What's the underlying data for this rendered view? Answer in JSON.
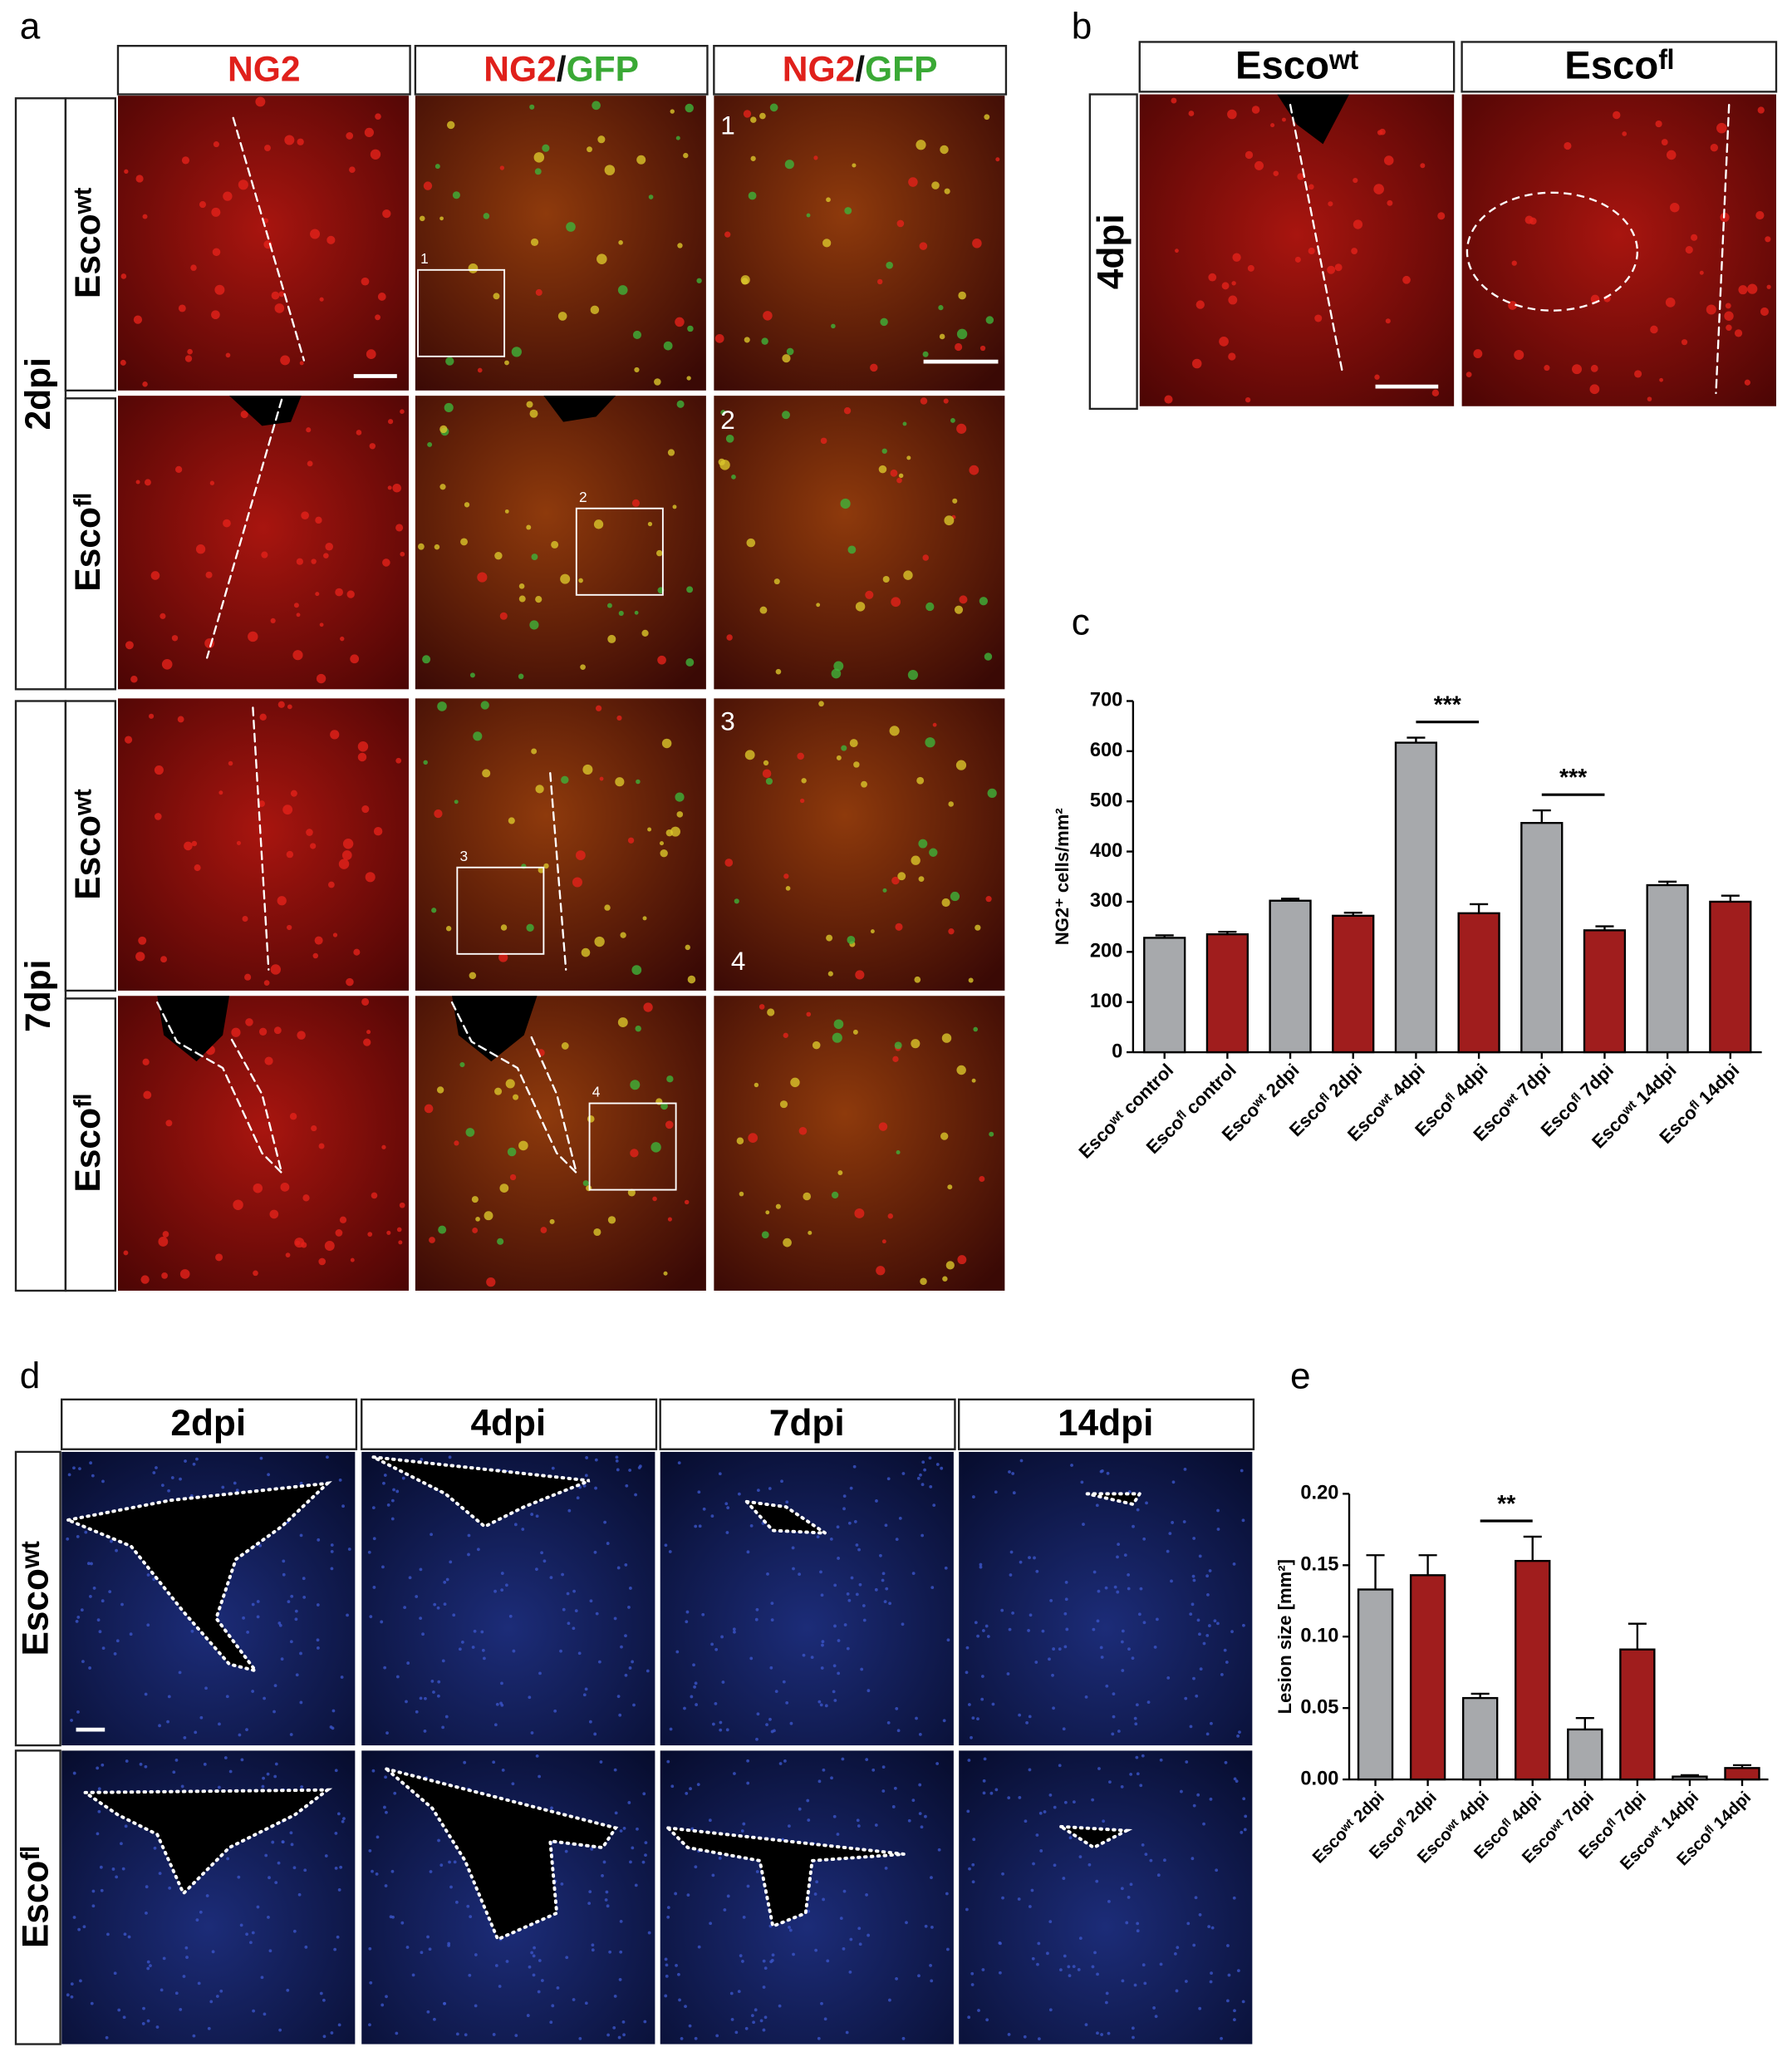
{
  "panel_labels": [
    "a",
    "b",
    "c",
    "d",
    "e"
  ],
  "panel_a": {
    "columns": [
      [
        "NG2"
      ],
      [
        "NG2",
        "/",
        "GFP"
      ],
      [
        "NG2",
        "/",
        "GFP"
      ]
    ],
    "groups": [
      {
        "label": "2dpi",
        "rows": [
          "Escoʷᵗ",
          "Escoᶠˡ"
        ]
      },
      {
        "label": "7dpi",
        "rows": [
          "Escoʷᵗ",
          "Escoᶠˡ"
        ]
      }
    ],
    "insets": [
      "1",
      "2",
      "3",
      "4"
    ]
  },
  "panel_b": {
    "columns": [
      "Escoʷᵗ",
      "Escoᶠˡ"
    ],
    "row": "4dpi"
  },
  "panel_d": {
    "columns": [
      "2dpi",
      "4dpi",
      "7dpi",
      "14dpi"
    ],
    "rows": [
      "Escoʷᵗ",
      "Escoᶠˡ"
    ]
  },
  "chart_data": [
    {
      "type": "bar",
      "y_label": "NG2⁺ cells/mm²",
      "categories": [
        "Escoʷᵗ control",
        "Escoᶠˡ control",
        "Escoʷᵗ 2dpi",
        "Escoᶠˡ 2dpi",
        "Escoʷᵗ 4dpi",
        "Escoᶠˡ 4dpi",
        "Escoʷᵗ 7dpi",
        "Escoᶠˡ 7dpi",
        "Escoʷᵗ 14dpi",
        "Escoᶠˡ 14dpi"
      ],
      "values": [
        228,
        235,
        302,
        272,
        617,
        277,
        457,
        243,
        333,
        300
      ],
      "errors": [
        5,
        5,
        4,
        6,
        10,
        18,
        25,
        8,
        7,
        12
      ],
      "colors": [
        "#a7a9ac",
        "#a01d1d",
        "#a7a9ac",
        "#a01d1d",
        "#a7a9ac",
        "#a01d1d",
        "#a7a9ac",
        "#a01d1d",
        "#a7a9ac",
        "#a01d1d"
      ],
      "ylim": [
        0,
        700
      ],
      "yticks": [
        0,
        100,
        200,
        300,
        400,
        500,
        600,
        700
      ],
      "significance": [
        {
          "label": "***",
          "between": [
            4,
            5
          ]
        },
        {
          "label": "***",
          "between": [
            6,
            7
          ]
        }
      ]
    },
    {
      "type": "bar",
      "y_label": "Lesion size [mm²]",
      "categories": [
        "Escoʷᵗ 2dpi",
        "Escoᶠˡ 2dpi",
        "Escoʷᵗ 4dpi",
        "Escoᶠˡ 4dpi",
        "Escoʷᵗ 7dpi",
        "Escoᶠˡ 7dpi",
        "Escoʷᵗ 14dpi",
        "Escoᶠˡ 14dpi"
      ],
      "values": [
        0.133,
        0.143,
        0.057,
        0.153,
        0.035,
        0.091,
        0.002,
        0.008
      ],
      "errors": [
        0.024,
        0.014,
        0.003,
        0.017,
        0.008,
        0.018,
        0.001,
        0.002
      ],
      "colors": [
        "#a7a9ac",
        "#a01d1d",
        "#a7a9ac",
        "#a01d1d",
        "#a7a9ac",
        "#a01d1d",
        "#a7a9ac",
        "#a01d1d"
      ],
      "ylim": [
        0,
        0.2
      ],
      "yticks": [
        {
          "value": 0,
          "label": "0.00"
        },
        {
          "value": 0.05,
          "label": "0.05"
        },
        {
          "value": 0.1,
          "label": "0.10"
        },
        {
          "value": 0.15,
          "label": "0.15"
        },
        {
          "value": 0.2,
          "label": "0.20"
        }
      ],
      "significance": [
        {
          "label": "**",
          "between": [
            2,
            3
          ]
        }
      ]
    }
  ]
}
